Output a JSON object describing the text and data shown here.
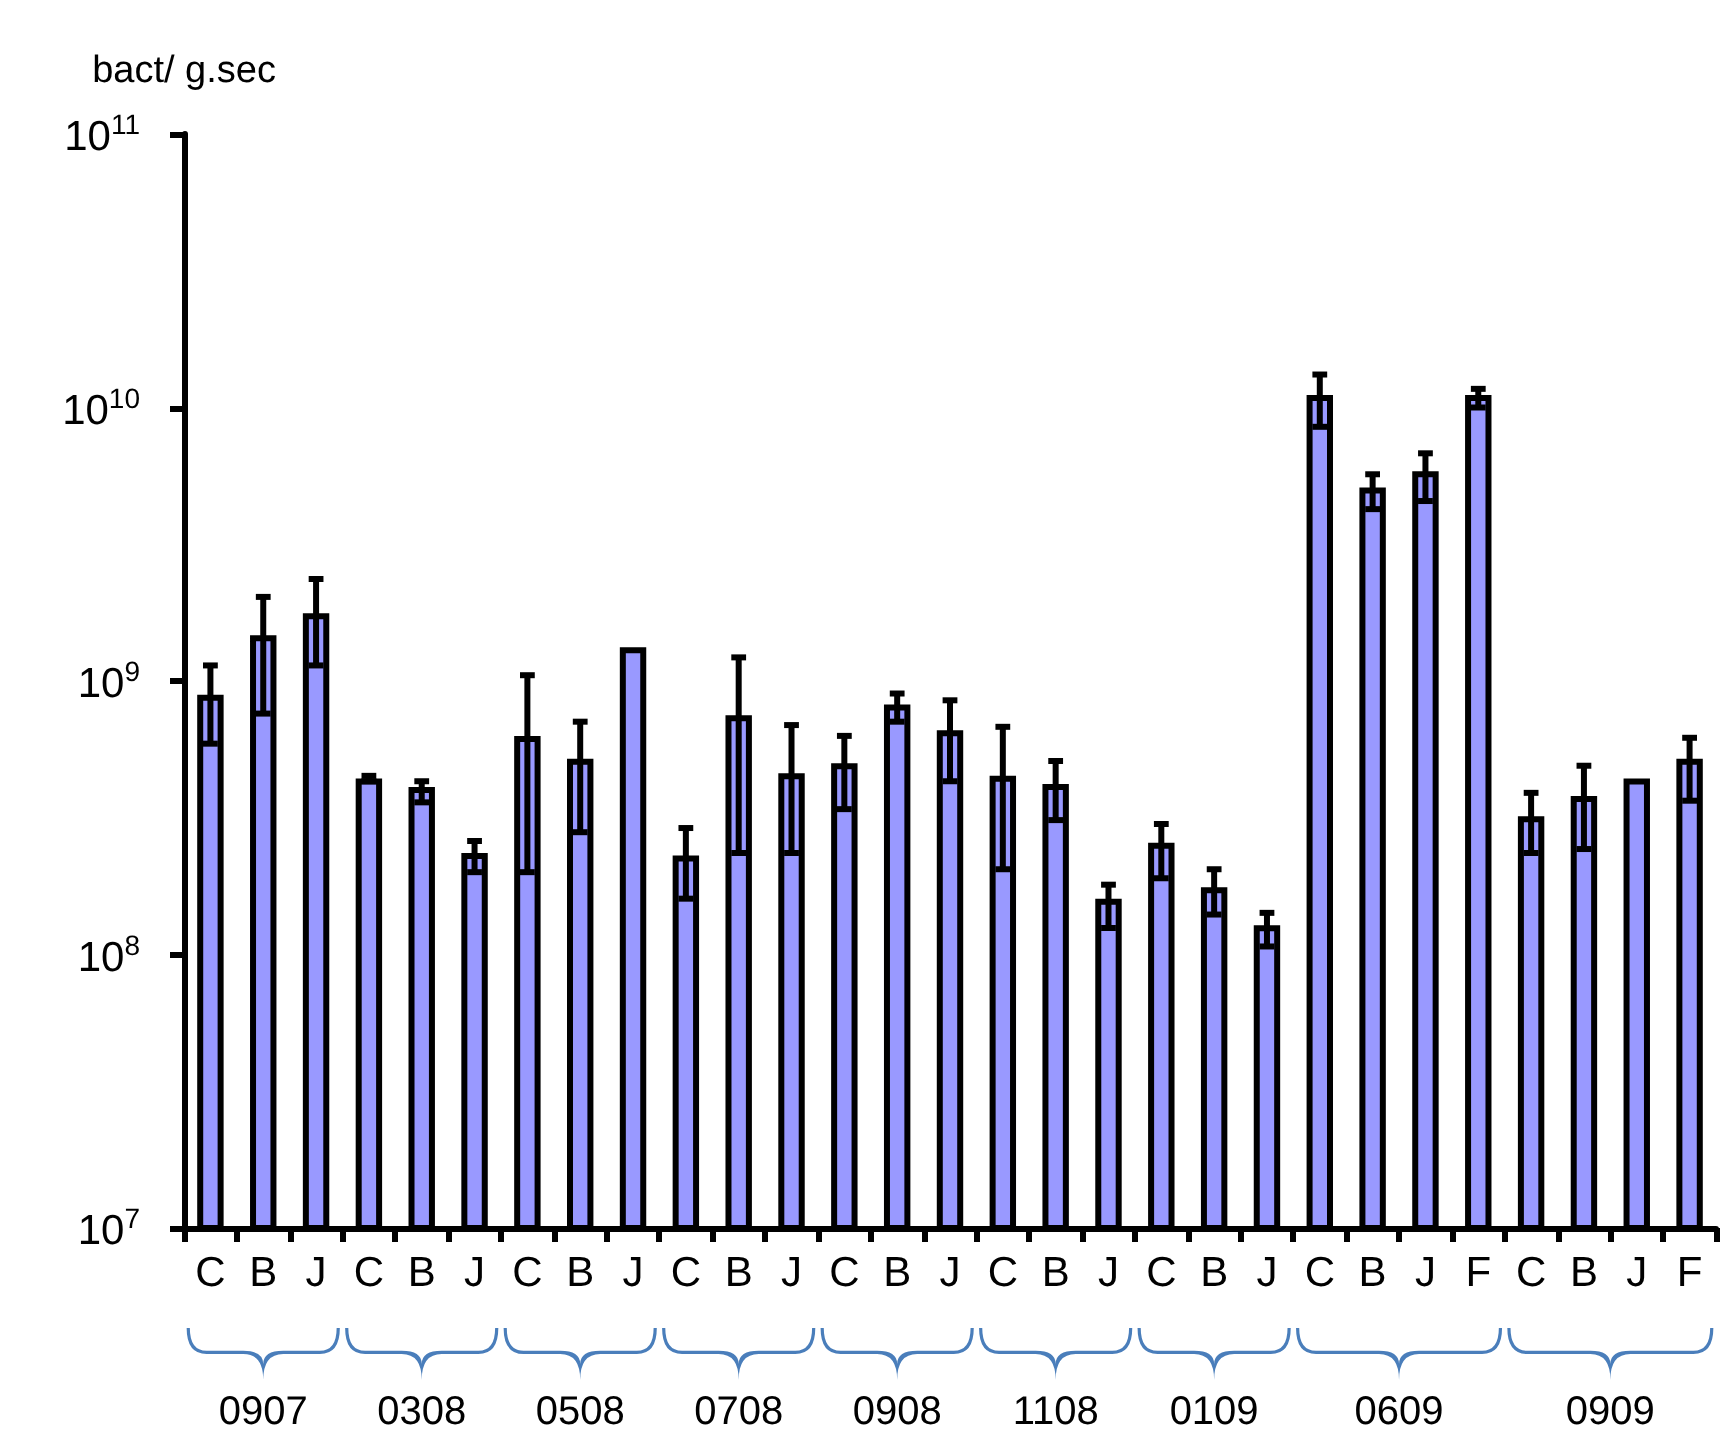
{
  "chart_data": {
    "type": "bar",
    "ylabel": "bact/ g.sec",
    "log": true,
    "categories": [
      "C",
      "B",
      "J",
      "C",
      "B",
      "J",
      "C",
      "B",
      "J",
      "C",
      "B",
      "J",
      "C",
      "B",
      "J",
      "C",
      "B",
      "J",
      "C",
      "B",
      "J",
      "C",
      "B",
      "J",
      "F",
      "C",
      "B",
      "J",
      "F"
    ],
    "series": [
      {
        "color": "#9999ff",
        "values": [
          890000000.0,
          1470000000.0,
          1770000000.0,
          440000000.0,
          410000000.0,
          235000000.0,
          630000000.0,
          520000000.0,
          1330000000.0,
          230000000.0,
          750000000.0,
          460000000.0,
          500000000.0,
          820000000.0,
          660000000.0,
          450000000.0,
          420000000.0,
          160000000.0,
          256000000.0,
          176000000.0,
          128000000.0,
          11100000000.0,
          5100000000.0,
          5850000000.0,
          11100000000.0,
          320000000.0,
          380000000.0,
          440000000.0,
          520000000.0
        ],
        "errors": [
          [
            590000000.0,
            1140000000.0
          ],
          [
            760000000.0,
            2030000000.0
          ],
          [
            1140000000.0,
            2360000000.0
          ],
          [
            430000000.0,
            450000000.0
          ],
          [
            360000000.0,
            430000000.0
          ],
          [
            200000000.0,
            260000000.0
          ],
          [
            200000000.0,
            1050000000.0
          ],
          [
            280000000.0,
            710000000.0
          ],
          null,
          [
            160000000.0,
            290000000.0
          ],
          [
            235000000.0,
            1220000000.0
          ],
          [
            235000000.0,
            690000000.0
          ],
          [
            340000000.0,
            630000000.0
          ],
          [
            710000000.0,
            900000000.0
          ],
          [
            430000000.0,
            850000000.0
          ],
          [
            205000000.0,
            680000000.0
          ],
          [
            310000000.0,
            510000000.0
          ],
          [
            125000000.0,
            180000000.0
          ],
          [
            190000000.0,
            300000000.0
          ],
          [
            140000000.0,
            205000000.0
          ],
          [
            107000000.0,
            142000000.0
          ],
          [
            8500000000.0,
            13200000000.0
          ],
          [
            4250000000.0,
            5700000000.0
          ],
          [
            4550000000.0,
            6800000000.0
          ],
          [
            10000000000.0,
            11700000000.0
          ],
          [
            235000000.0,
            390000000.0
          ],
          [
            243000000.0,
            490000000.0
          ],
          null,
          [
            365000000.0,
            620000000.0
          ]
        ]
      }
    ],
    "ylim": [
      10000000.0,
      100000000000.0
    ],
    "yticks": [
      {
        "value": 10000000.0,
        "label": "10$^{7}$"
      },
      {
        "value": 100000000.0,
        "label": "10$^{8}$"
      },
      {
        "value": 1000000000.0,
        "label": "10$^{9}$"
      },
      {
        "value": 10000000000.0,
        "label": "10$^{10}$"
      },
      {
        "value": 100000000000.0,
        "label": "10$^{11}$"
      }
    ],
    "annotations": [
      "0907",
      "0308",
      "0508",
      "0708",
      "0908",
      "1108",
      "0109",
      "0609",
      "0909"
    ]
  }
}
